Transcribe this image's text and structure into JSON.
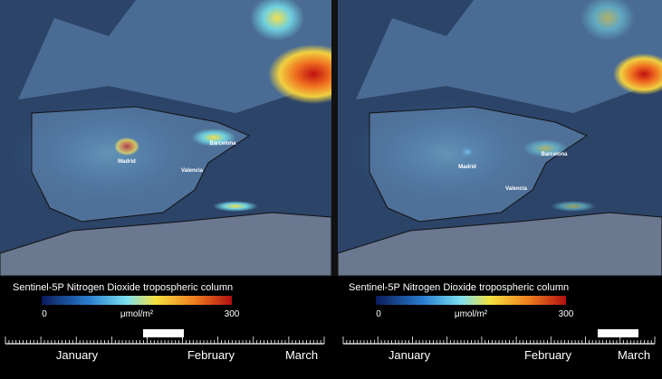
{
  "panels": [
    {
      "cities": [
        "Madrid",
        "Valencia",
        "Barcelona"
      ],
      "legend": {
        "title": "Sentinel-5P Nitrogen Dioxide tropospheric column",
        "min": 0,
        "max": 300,
        "unit": "μmol/m²"
      },
      "timeline": [
        "January",
        "February",
        "March"
      ]
    },
    {
      "cities": [
        "Madrid",
        "Valencia",
        "Barcelona"
      ],
      "legend": {
        "title": "Sentinel-5P Nitrogen Dioxide tropospheric column",
        "min": 0,
        "max": 300,
        "unit": "μmol/m²"
      },
      "timeline": [
        "January",
        "February",
        "March"
      ]
    }
  ]
}
